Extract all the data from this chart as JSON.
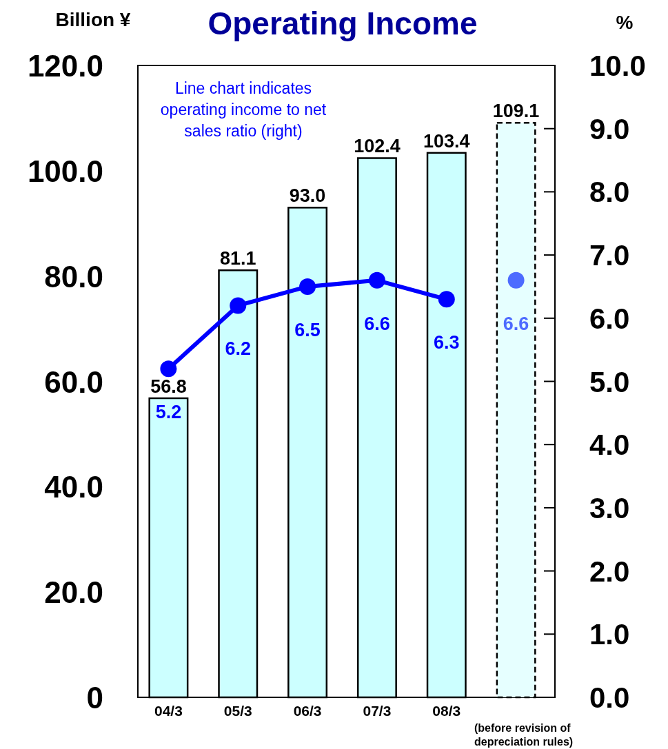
{
  "chart_data": {
    "type": "bar",
    "title": "Operating Income",
    "ylabel": "Billion ¥",
    "y2label": "%",
    "annotations": [
      "Line chart indicates operating income to net sales ratio (right)",
      "(before revision of depreciation rules)"
    ],
    "categories": [
      "04/3",
      "05/3",
      "06/3",
      "07/3",
      "08/3",
      null
    ],
    "series": [
      {
        "color": "#ccffff",
        "values": [
          56.8,
          81.1,
          93.0,
          102.4,
          103.4,
          null
        ],
        "value_labels": [
          "56.8",
          "81.1",
          "93.0",
          "102.4",
          "103.4",
          null
        ],
        "line_style": "solid"
      },
      {
        "color": "#e6ffff",
        "values": [
          null,
          null,
          null,
          null,
          null,
          109.1
        ],
        "value_labels": [
          null,
          null,
          null,
          null,
          null,
          "109.1"
        ],
        "line_style": "dashed"
      },
      {
        "type": "line",
        "axis": "y2",
        "color": "#0000ff",
        "values": [
          5.2,
          6.2,
          6.5,
          6.6,
          6.3,
          null
        ],
        "value_labels": [
          "5.2",
          "6.2",
          "6.5",
          "6.6",
          "6.3",
          null
        ],
        "marker": "circle",
        "line_style": "solid"
      },
      {
        "type": "line",
        "axis": "y2",
        "color": "#4d6bff",
        "values": [
          null,
          null,
          null,
          null,
          null,
          6.6
        ],
        "value_labels": [
          null,
          null,
          null,
          null,
          null,
          "6.6"
        ],
        "marker": "circle",
        "line_style": "solid"
      }
    ],
    "ylim": [
      0,
      120
    ],
    "yticks": [
      0,
      {
        "value": 20,
        "label": "20.0"
      },
      {
        "value": 40,
        "label": "40.0"
      },
      {
        "value": 60,
        "label": "60.0"
      },
      {
        "value": 80,
        "label": "80.0"
      },
      {
        "value": 100,
        "label": "100.0"
      },
      {
        "value": 120,
        "label": "120.0"
      }
    ],
    "y2lim": [
      0,
      10
    ],
    "y2ticks": [
      {
        "value": 0,
        "label": "0.0"
      },
      {
        "value": 1,
        "label": "1.0"
      },
      {
        "value": 2,
        "label": "2.0"
      },
      {
        "value": 3,
        "label": "3.0"
      },
      {
        "value": 4,
        "label": "4.0"
      },
      {
        "value": 5,
        "label": "5.0"
      },
      {
        "value": 6,
        "label": "6.0"
      },
      {
        "value": 7,
        "label": "7.0"
      },
      {
        "value": 8,
        "label": "8.0"
      },
      {
        "value": 9,
        "label": "9.0"
      },
      {
        "value": 10,
        "label": "10.0"
      }
    ]
  }
}
